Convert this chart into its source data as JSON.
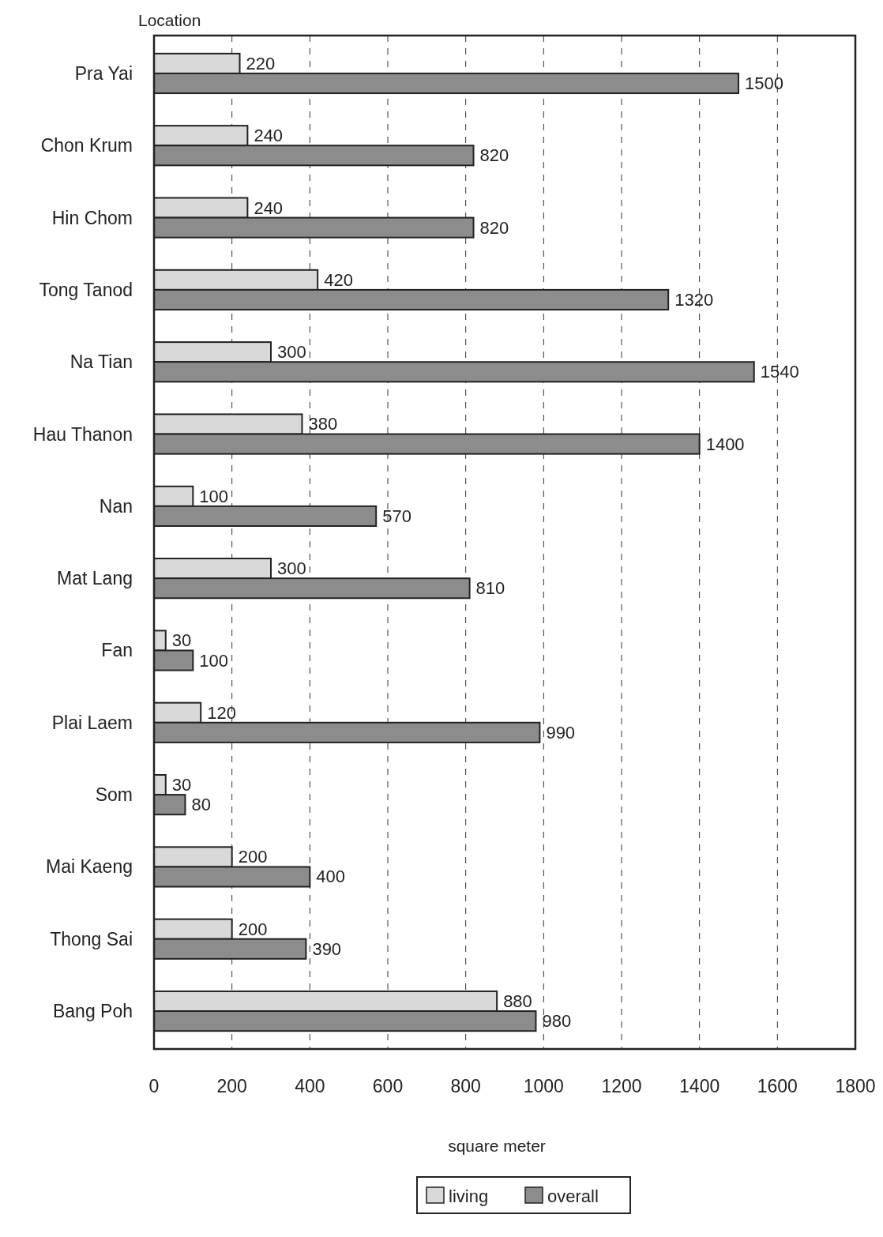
{
  "chart_data": {
    "type": "bar",
    "orientation": "horizontal",
    "ylabel": "Location",
    "xlabel": "square meter",
    "categories": [
      "Pra Yai",
      "Chon Krum",
      "Hin Chom",
      "Tong Tanod",
      "Na Tian",
      "Hau Thanon",
      "Nan",
      "Mat Lang",
      "Fan",
      "Plai Laem",
      "Som",
      "Mai Kaeng",
      "Thong Sai",
      "Bang Poh"
    ],
    "series": [
      {
        "name": "living",
        "color": "#d9d9d9",
        "values": [
          220,
          240,
          240,
          420,
          300,
          380,
          100,
          300,
          30,
          120,
          30,
          200,
          200,
          880
        ]
      },
      {
        "name": "overall",
        "color": "#8c8c8c",
        "values": [
          1500,
          820,
          820,
          1320,
          1540,
          1400,
          570,
          810,
          100,
          990,
          80,
          400,
          390,
          980
        ]
      }
    ],
    "xlim": [
      0,
      1800
    ],
    "xticks": [
      0,
      200,
      400,
      600,
      800,
      1000,
      1200,
      1400,
      1600,
      1800
    ],
    "grid": "x",
    "data_labels": true,
    "legend": "bottom"
  }
}
